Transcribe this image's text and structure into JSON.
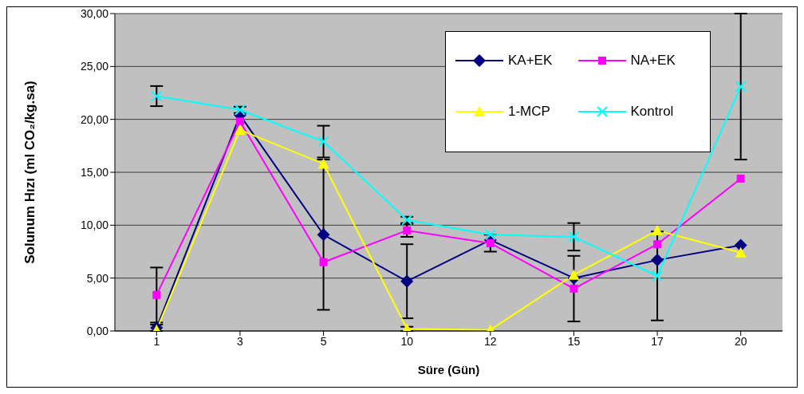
{
  "chart_data": {
    "type": "line",
    "xlabel": "Süre (Gün)",
    "ylabel": "Solunum Hızı (ml CO₂/kg.sa)",
    "categories": [
      "1",
      "3",
      "5",
      "10",
      "12",
      "15",
      "17",
      "20"
    ],
    "ylim": [
      0,
      30
    ],
    "yticks": [
      {
        "value": 0,
        "label": "0,00"
      },
      {
        "value": 5,
        "label": "5,00"
      },
      {
        "value": 10,
        "label": "10,00"
      },
      {
        "value": 15,
        "label": "15,00"
      },
      {
        "value": 20,
        "label": "20,00"
      },
      {
        "value": 25,
        "label": "25,00"
      },
      {
        "value": 30,
        "label": "30,00"
      }
    ],
    "grid": "y",
    "legend": "top right",
    "series": [
      {
        "name": "KA+EK",
        "color": "#000080",
        "marker": "diamond",
        "values": [
          0.3,
          20.4,
          9.1,
          4.7,
          8.6,
          5.0,
          6.7,
          8.1
        ],
        "errors": [
          0.3,
          null,
          7.1,
          3.5,
          null,
          null,
          null,
          null
        ]
      },
      {
        "name": "NA+EK",
        "color": "#ff00ff",
        "marker": "square",
        "values": [
          3.4,
          19.8,
          6.5,
          9.5,
          8.3,
          4.0,
          8.2,
          14.4
        ],
        "errors": [
          2.6,
          null,
          null,
          0.6,
          0.8,
          3.1,
          null,
          null
        ]
      },
      {
        "name": "1-MCP",
        "color": "#ffff00",
        "marker": "triangle",
        "values": [
          0.1,
          19.0,
          15.8,
          0.2,
          0.1,
          5.3,
          9.5,
          7.4
        ],
        "errors": [
          null,
          null,
          null,
          0.2,
          null,
          null,
          null,
          null
        ]
      },
      {
        "name": "Kontrol",
        "color": "#00ffff",
        "marker": "cross",
        "values": [
          22.2,
          20.9,
          17.9,
          10.5,
          9.1,
          8.9,
          5.2,
          23.1
        ],
        "errors": [
          0.95,
          0.3,
          1.5,
          0.3,
          null,
          1.3,
          4.2,
          6.9
        ]
      }
    ]
  }
}
